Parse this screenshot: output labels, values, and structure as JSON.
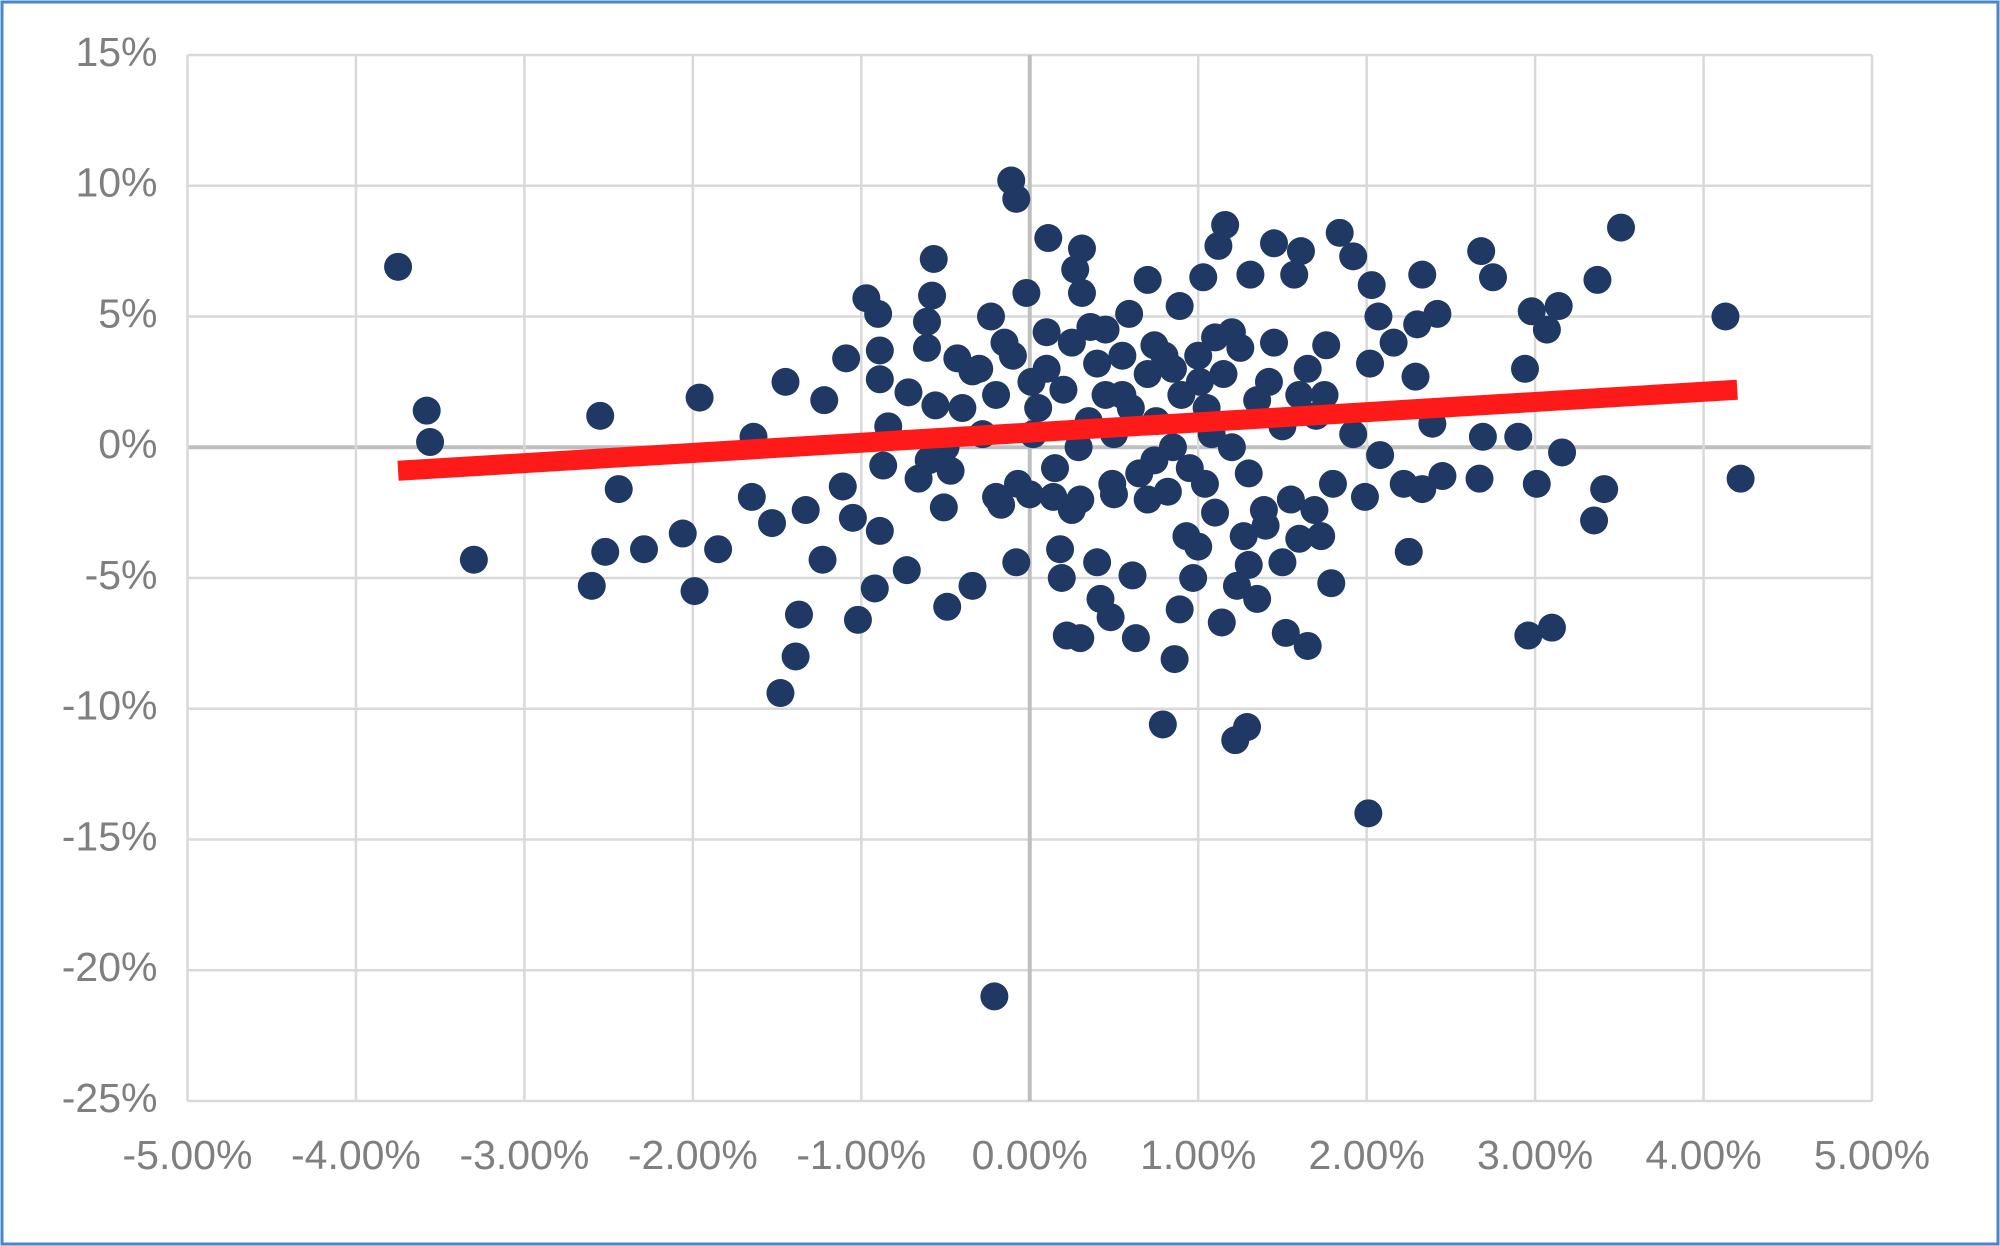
{
  "chart_data": {
    "type": "scatter",
    "xlim": [
      -5,
      5
    ],
    "ylim": [
      -25,
      15
    ],
    "xticks": [
      {
        "value": -5,
        "label": "-5.00%"
      },
      {
        "value": -4,
        "label": "-4.00%"
      },
      {
        "value": -3,
        "label": "-3.00%"
      },
      {
        "value": -2,
        "label": "-2.00%"
      },
      {
        "value": -1,
        "label": "-1.00%"
      },
      {
        "value": 0,
        "label": "0.00%"
      },
      {
        "value": 1,
        "label": "1.00%"
      },
      {
        "value": 2,
        "label": "2.00%"
      },
      {
        "value": 3,
        "label": "3.00%"
      },
      {
        "value": 4,
        "label": "4.00%"
      },
      {
        "value": 5,
        "label": "5.00%"
      }
    ],
    "yticks": [
      {
        "value": 15,
        "label": "15%"
      },
      {
        "value": 10,
        "label": "10%"
      },
      {
        "value": 5,
        "label": "5%"
      },
      {
        "value": 0,
        "label": "0%"
      },
      {
        "value": -5,
        "label": "-5%"
      },
      {
        "value": -10,
        "label": "-10%"
      },
      {
        "value": -15,
        "label": "-15%"
      },
      {
        "value": -20,
        "label": "-20%"
      },
      {
        "value": -25,
        "label": "-25%"
      }
    ],
    "grid": true,
    "series": [
      {
        "color": "#1f3864",
        "x": [
          -3.75,
          -3.58,
          -3.56,
          -3.3,
          -2.55,
          -2.52,
          -2.44,
          -2.6,
          -2.29,
          -2.06,
          -1.99,
          -1.96,
          -1.85,
          -1.64,
          -1.65,
          -1.53,
          -1.45,
          -1.48,
          -1.39,
          -1.37,
          -1.33,
          -1.23,
          -1.22,
          -1.11,
          -1.09,
          -1.02,
          -1.05,
          -0.97,
          -0.92,
          -0.89,
          -0.89,
          -0.89,
          -0.9,
          -0.84,
          -0.87,
          -0.73,
          -0.72,
          -0.66,
          -0.57,
          -0.58,
          -0.61,
          -0.61,
          -0.56,
          -0.49,
          -0.51,
          -0.47,
          -0.43,
          -0.34,
          -0.34,
          -0.28,
          -0.23,
          -0.21,
          -0.2,
          -0.17,
          -0.11,
          -0.08,
          -0.08,
          -0.07,
          -0.02,
          0.01,
          0.02,
          0.11,
          0.1,
          0.14,
          0.18,
          0.19,
          0.22,
          0.3,
          0.31,
          0.27,
          0.31,
          0.25,
          0.29,
          0.36,
          0.4,
          0.42,
          0.48,
          0.49,
          0.55,
          0.59,
          0.61,
          0.63,
          0.7,
          0.74,
          0.74,
          0.79,
          0.82,
          0.86,
          0.89,
          0.89,
          0.93,
          0.97,
          1.01,
          1.03,
          1.04,
          1.08,
          1.12,
          1.16,
          1.14,
          1.2,
          1.22,
          1.29,
          1.23,
          1.27,
          1.31,
          1.35,
          1.39,
          1.42,
          1.45,
          1.5,
          1.52,
          1.57,
          1.61,
          1.65,
          1.65,
          1.69,
          1.73,
          1.76,
          1.79,
          1.8,
          1.84,
          1.92,
          1.92,
          1.99,
          2.01,
          2.02,
          2.03,
          2.07,
          2.08,
          2.16,
          2.22,
          2.25,
          2.29,
          2.3,
          2.33,
          2.33,
          2.39,
          2.42,
          2.45,
          2.67,
          2.68,
          2.69,
          2.75,
          2.9,
          2.94,
          2.96,
          2.98,
          3.01,
          3.07,
          3.1,
          3.14,
          3.16,
          3.35,
          3.37,
          3.41,
          3.51,
          4.13,
          4.22,
          -0.3,
          -0.2,
          -0.1,
          0.05,
          0.1,
          0.2,
          0.25,
          0.35,
          0.4,
          0.45,
          0.5,
          0.55,
          0.6,
          0.65,
          0.7,
          0.75,
          0.8,
          0.85,
          0.9,
          0.95,
          1.0,
          1.05,
          1.1,
          1.15,
          1.2,
          1.25,
          1.3,
          1.35,
          1.4,
          1.45,
          1.5,
          1.55,
          1.6,
          1.7,
          -0.4,
          -0.5,
          -0.6,
          0.0,
          0.15,
          0.3,
          0.5,
          0.7,
          1.0,
          1.3,
          1.6,
          0.85,
          -0.15,
          0.45,
          1.1,
          1.75
        ],
        "y": [
          6.9,
          1.4,
          0.2,
          -4.3,
          1.2,
          -4.0,
          -1.6,
          -5.3,
          -3.9,
          -3.3,
          -5.5,
          1.9,
          -3.9,
          0.4,
          -1.9,
          -2.9,
          2.5,
          -9.4,
          -8.0,
          -6.4,
          -2.4,
          -4.3,
          1.8,
          -1.5,
          3.4,
          -6.6,
          -2.7,
          5.7,
          -5.4,
          -3.2,
          2.6,
          3.7,
          5.1,
          0.8,
          -0.7,
          -4.7,
          2.1,
          -1.2,
          7.2,
          5.8,
          4.8,
          3.8,
          1.6,
          -6.1,
          -2.3,
          -0.9,
          3.4,
          -5.3,
          2.9,
          0.5,
          5.0,
          -21.0,
          -1.9,
          -2.2,
          10.2,
          9.5,
          -4.4,
          -1.4,
          5.9,
          2.5,
          0.5,
          8.0,
          4.4,
          -1.9,
          -3.9,
          -5.0,
          -7.2,
          -7.3,
          7.6,
          6.8,
          5.9,
          -2.4,
          0.0,
          4.6,
          -4.4,
          -5.8,
          -6.5,
          -1.4,
          2.0,
          5.1,
          -4.9,
          -7.3,
          6.4,
          3.9,
          -0.5,
          -10.6,
          -1.7,
          -8.1,
          -6.2,
          5.4,
          -3.4,
          -5.0,
          2.5,
          6.5,
          -1.4,
          0.5,
          7.7,
          8.5,
          -6.7,
          4.4,
          -11.2,
          -10.7,
          -5.3,
          -3.4,
          6.6,
          -5.8,
          -2.4,
          2.5,
          7.8,
          -4.4,
          -7.1,
          6.6,
          7.5,
          -7.6,
          3.0,
          -2.4,
          -3.4,
          3.9,
          -5.2,
          -1.4,
          8.2,
          7.3,
          0.5,
          -1.9,
          -14.0,
          3.2,
          6.2,
          5.0,
          -0.3,
          4.0,
          -1.4,
          -4.0,
          2.7,
          4.7,
          6.6,
          -1.6,
          0.9,
          5.1,
          -1.1,
          -1.2,
          7.5,
          0.4,
          6.5,
          0.4,
          3.0,
          -7.2,
          5.2,
          -1.4,
          4.5,
          -6.9,
          5.4,
          -0.2,
          -2.8,
          6.4,
          -1.6,
          8.4,
          5.0,
          -1.2,
          3.0,
          2.0,
          3.5,
          1.5,
          3.0,
          2.2,
          4.0,
          1.0,
          3.2,
          2.0,
          0.5,
          3.5,
          1.5,
          -1.0,
          2.8,
          1.0,
          3.5,
          0.0,
          2.0,
          -0.8,
          3.5,
          1.5,
          -2.5,
          2.8,
          0.0,
          3.8,
          -1.0,
          1.8,
          -3.0,
          4.0,
          0.8,
          -2.0,
          2.0,
          1.2,
          1.5,
          0.0,
          -0.5,
          -1.8,
          -0.8,
          -2.0,
          -1.8,
          -2.0,
          -3.8,
          -4.5,
          -3.5,
          3.0,
          4.0,
          4.5,
          4.2,
          2.0
        ]
      }
    ],
    "trendline": {
      "color": "#ff1a1a",
      "x": [
        -3.75,
        4.2
      ],
      "y": [
        -0.9,
        2.2
      ]
    }
  }
}
